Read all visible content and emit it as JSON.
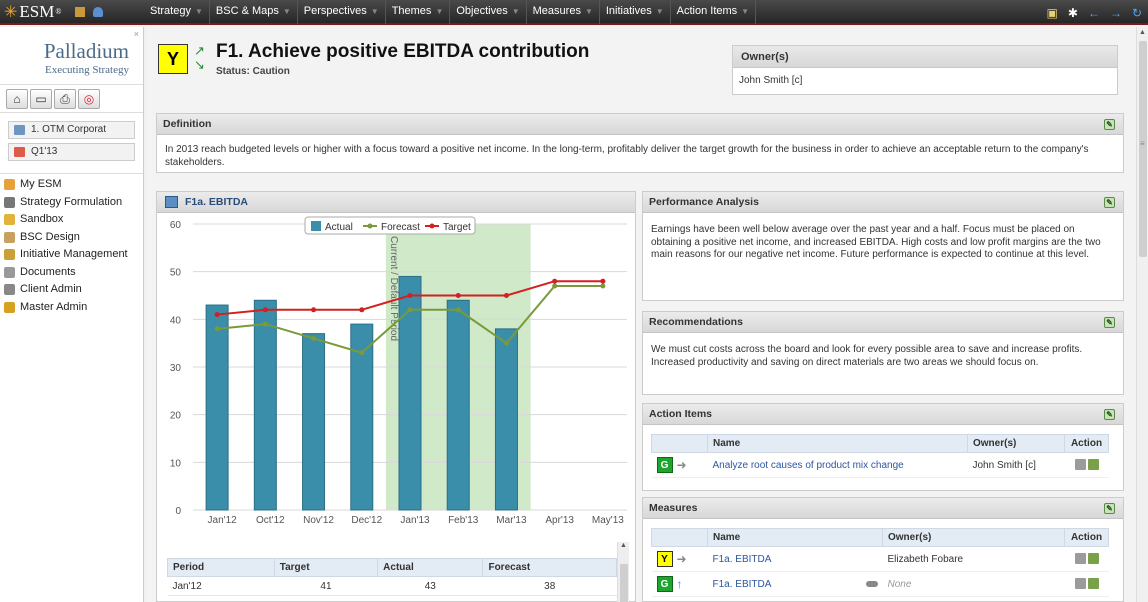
{
  "topbar": {
    "logo_text": "ESM",
    "logo_mark": "®",
    "menu": [
      "Strategy",
      "BSC & Maps",
      "Perspectives",
      "Themes",
      "Objectives",
      "Measures",
      "Initiatives",
      "Action Items"
    ]
  },
  "sidebar": {
    "brand_name": "Palladium",
    "brand_tagline": "Executing Strategy",
    "close_glyph": "×",
    "org_selector": "1. OTM Corporat",
    "period_selector": "Q1'13",
    "menu": [
      "My ESM",
      "Strategy Formulation",
      "Sandbox",
      "BSC Design",
      "Initiative Management",
      "Documents",
      "Client Admin",
      "Master Admin"
    ]
  },
  "header": {
    "status_code": "Y",
    "title": "F1. Achieve positive EBITDA contribution",
    "status_text": "Status: Caution",
    "owners_label": "Owner(s)",
    "owner": "John Smith [c]"
  },
  "definition": {
    "label": "Definition",
    "text": "In 2013 reach budgeted levels or higher with a focus toward a positive net income. In the long-term, profitably deliver the target growth for the business in order to achieve an acceptable return to the company's stakeholders."
  },
  "chart_panel": {
    "title": "F1a. EBITDA"
  },
  "chart_data": {
    "type": "bar",
    "categories": [
      "Jan'12",
      "Oct'12",
      "Nov'12",
      "Dec'12",
      "Jan'13",
      "Feb'13",
      "Mar'13",
      "Apr'13",
      "May'13"
    ],
    "series": [
      {
        "name": "Actual",
        "type": "bar",
        "values": [
          43,
          44,
          37,
          39,
          49,
          44,
          38,
          null,
          null
        ],
        "color": "#3a8eaa"
      },
      {
        "name": "Forecast",
        "type": "line",
        "values": [
          38,
          39,
          36,
          33,
          42,
          42,
          35,
          47,
          47
        ],
        "color": "#7a9a3a"
      },
      {
        "name": "Target",
        "type": "line",
        "values": [
          41,
          42,
          42,
          42,
          45,
          45,
          45,
          48,
          48
        ],
        "color": "#d42020"
      }
    ],
    "ylim": [
      0,
      60
    ],
    "yticks": [
      0,
      10,
      20,
      30,
      40,
      50,
      60
    ],
    "highlight": {
      "from": "Jan'13",
      "to": "Mar'13",
      "label": "Current / Default Period",
      "color": "#cfe9c9"
    },
    "legend_position": "top-right",
    "grid": true
  },
  "data_table": {
    "headers": [
      "Period",
      "Target",
      "Actual",
      "Forecast"
    ],
    "rows": [
      [
        "Jan'12",
        "41",
        "43",
        "38"
      ]
    ]
  },
  "performance": {
    "label": "Performance Analysis",
    "text": "Earnings have been well below average over the past year and a half.  Focus must be placed on obtaining a positive net income, and increased EBITDA.  High costs and low profit margins are the two main reasons for our negative net income.  Future performance is expected to continue at this level."
  },
  "recommendations": {
    "label": "Recommendations",
    "text": "We must cut costs across the board and look for every possible area to save and increase profits. Increased productivity and saving on direct materials are two areas we should focus on."
  },
  "action_items": {
    "label": "Action Items",
    "headers": [
      "Name",
      "Owner(s)",
      "Action"
    ],
    "rows": [
      {
        "status": "G",
        "name": "Analyze root causes of product mix change",
        "owner": "John Smith [c]"
      }
    ]
  },
  "measures": {
    "label": "Measures",
    "headers": [
      "Name",
      "Owner(s)",
      "Action"
    ],
    "rows": [
      {
        "status": "Y",
        "name": "F1a. EBITDA",
        "owner": "Elizabeth Fobare"
      },
      {
        "status": "G",
        "name": "F1a. EBITDA",
        "owner": "None"
      }
    ]
  }
}
